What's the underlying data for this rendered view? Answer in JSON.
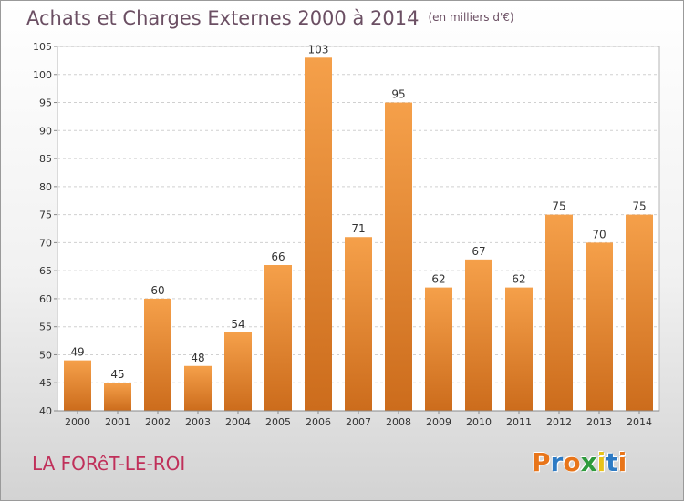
{
  "header": {
    "title": "Achats et Charges Externes 2000 à 2014",
    "unit": "(en milliers d'€)"
  },
  "footer": {
    "commune": "LA FORêT-LE-ROI",
    "brand": "Proxiti"
  },
  "colors": {
    "bar_top": "#f5a04a",
    "bar_bottom": "#cc6c1c",
    "title": "#6b4f63",
    "commune": "#c0305a",
    "brand_letters": [
      "#e8751a",
      "#2e7bc4",
      "#e8751a",
      "#2e9a3c",
      "#e8c21a",
      "#2e7bc4",
      "#e8751a"
    ]
  },
  "chart_data": {
    "type": "bar",
    "title": "Achats et Charges Externes 2000 à 2014",
    "xlabel": "",
    "ylabel": "",
    "categories": [
      "2000",
      "2001",
      "2002",
      "2003",
      "2004",
      "2005",
      "2006",
      "2007",
      "2008",
      "2009",
      "2010",
      "2011",
      "2012",
      "2013",
      "2014"
    ],
    "values": [
      49,
      45,
      60,
      48,
      54,
      66,
      103,
      71,
      95,
      62,
      67,
      62,
      75,
      70,
      75
    ],
    "ylim": [
      40,
      105
    ],
    "yticks": [
      40,
      45,
      50,
      55,
      60,
      65,
      70,
      75,
      80,
      85,
      90,
      95,
      100,
      105
    ],
    "grid": true,
    "data_labels": true
  }
}
